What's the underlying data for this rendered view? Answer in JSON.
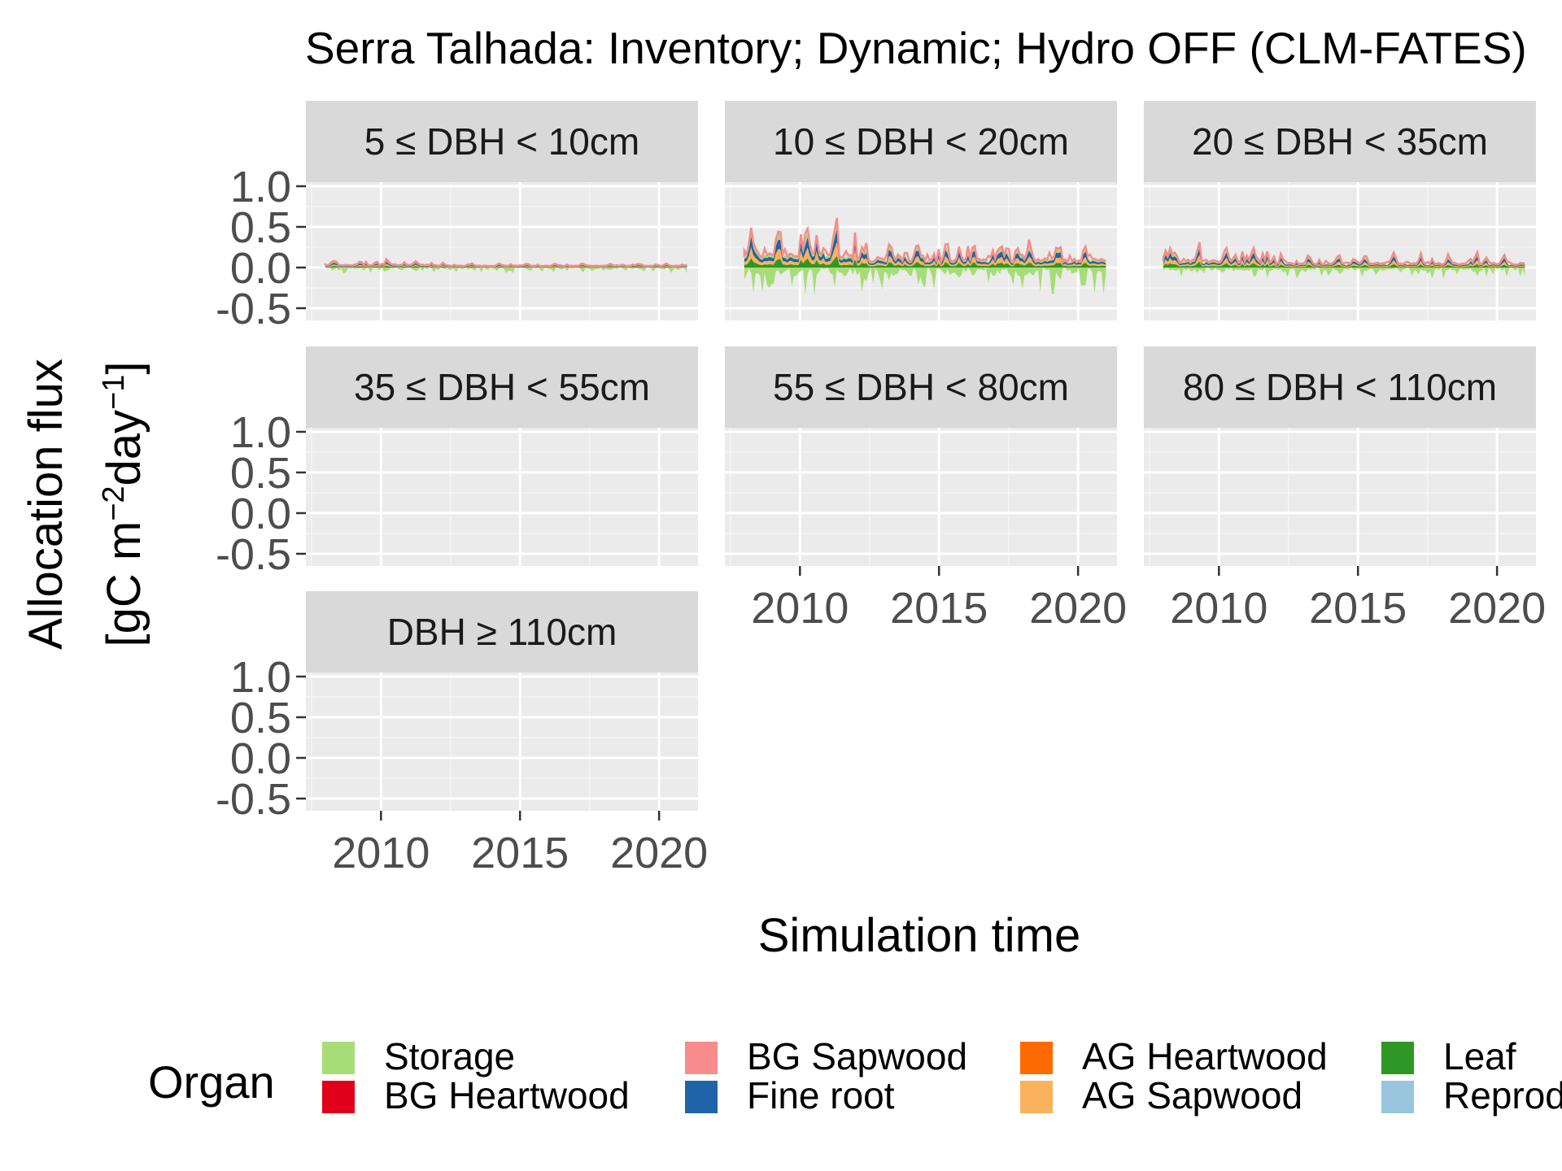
{
  "chart_data": {
    "type": "area",
    "title": "Serra Talhada: Inventory; Dynamic; Hydro OFF (CLM-FATES)",
    "xlabel": "Simulation time",
    "ylabel_line1": "Allocation flux",
    "ylabel_line2": "[gC m",
    "ylabel_sup1": "−2",
    "ylabel_mid": "day",
    "ylabel_sup2": "−1",
    "ylabel_end": "]",
    "xlim": [
      2007.3,
      2021.4
    ],
    "ylim": [
      -0.65,
      1.05
    ],
    "x_ticks": [
      2010,
      2015,
      2020
    ],
    "x_tick_labels": [
      "2010",
      "2015",
      "2020"
    ],
    "y_ticks": [
      -0.5,
      0.0,
      0.5,
      1.0
    ],
    "y_tick_labels": [
      "-0.5",
      "0.0",
      "0.5",
      "1.0"
    ],
    "grid": true,
    "legend_position": "bottom",
    "legend_title": "Organ",
    "series": [
      {
        "name": "Storage",
        "color": "#a6dd76"
      },
      {
        "name": "BG Heartwood",
        "color": "#e0001a"
      },
      {
        "name": "BG Sapwood",
        "color": "#f88b8b"
      },
      {
        "name": "Fine root",
        "color": "#1f63a8"
      },
      {
        "name": "AG Heartwood",
        "color": "#ff6a00"
      },
      {
        "name": "AG Sapwood",
        "color": "#fbb25c"
      },
      {
        "name": "Leaf",
        "color": "#2e9725"
      },
      {
        "name": "Reproduction",
        "color": "#99c5de"
      }
    ],
    "panels": [
      {
        "label": "5 ≤ DBH < 10cm",
        "amp": 0.09,
        "neg": 0.07,
        "active": true
      },
      {
        "label": "10 ≤ DBH < 20cm",
        "amp": 0.65,
        "neg": 0.35,
        "active": true
      },
      {
        "label": "20 ≤ DBH < 35cm",
        "amp": 0.3,
        "neg": 0.15,
        "active": true
      },
      {
        "label": "35 ≤ DBH < 55cm",
        "amp": 0,
        "neg": 0,
        "active": false
      },
      {
        "label": "55 ≤ DBH < 80cm",
        "amp": 0,
        "neg": 0,
        "active": false
      },
      {
        "label": "80 ≤ DBH < 110cm",
        "amp": 0,
        "neg": 0,
        "active": false
      },
      {
        "label": "DBH ≥ 110cm",
        "amp": 0,
        "neg": 0,
        "active": false
      }
    ]
  }
}
